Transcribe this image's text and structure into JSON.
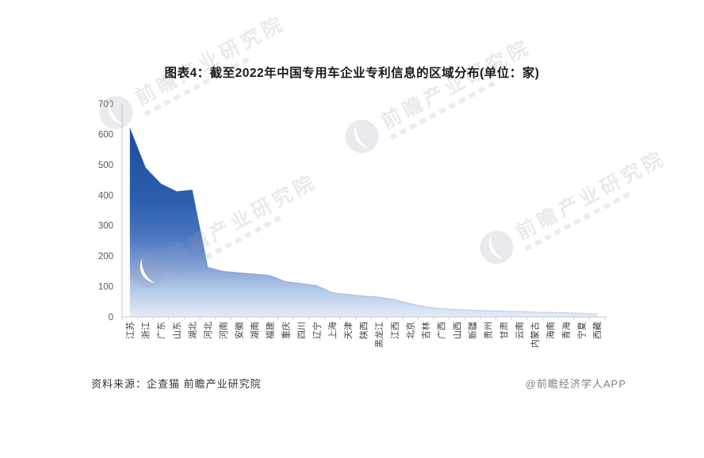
{
  "header": {
    "title": "图表4：截至2022年中国专用车企业专利信息的区域分布(单位：家)"
  },
  "footer": {
    "source": "资料来源：企查猫 前瞻产业研究院",
    "credit": "@前瞻经济学人APP"
  },
  "watermark": {
    "text": "前瞻产业研究院",
    "logo_icon": "forward-crescent-logo",
    "color": "rgba(148,158,175,0.22)"
  },
  "chart_data": {
    "type": "area",
    "title": "图表4：截至2022年中国专用车企业专利信息的区域分布(单位：家)",
    "unit": "家",
    "categories": [
      "江苏",
      "浙江",
      "广东",
      "山东",
      "湖北",
      "河北",
      "河南",
      "安徽",
      "湖南",
      "福建",
      "重庆",
      "四川",
      "辽宁",
      "上海",
      "天津",
      "陕西",
      "黑龙江",
      "江西",
      "北京",
      "吉林",
      "广西",
      "山西",
      "新疆",
      "贵州",
      "甘肃",
      "云南",
      "内蒙古",
      "海南",
      "青海",
      "宁夏",
      "西藏"
    ],
    "values": [
      620,
      490,
      437,
      412,
      417,
      163,
      150,
      145,
      141,
      136,
      116,
      110,
      103,
      80,
      74,
      69,
      65,
      57,
      44,
      33,
      27,
      25,
      22,
      20,
      19,
      18,
      16,
      15,
      14,
      12,
      10
    ],
    "xlabel": "",
    "ylabel": "",
    "ylim": [
      0,
      700
    ],
    "yticks": [
      0,
      100,
      200,
      300,
      400,
      500,
      600,
      700
    ],
    "grid": false,
    "legend": false,
    "colors": {
      "area_gradient": [
        {
          "offset": "0%",
          "color": "#1a4c9c"
        },
        {
          "offset": "15%",
          "color": "#1d509f"
        },
        {
          "offset": "45%",
          "color": "#2b5ead"
        },
        {
          "offset": "62%",
          "color": "#4a75bf"
        },
        {
          "offset": "75%",
          "color": "#7d9cd3"
        },
        {
          "offset": "87%",
          "color": "#b3c8e8"
        },
        {
          "offset": "100%",
          "color": "#e3ecf9"
        }
      ],
      "edge_gradient": [
        {
          "offset": "0%",
          "color": "#17468f"
        },
        {
          "offset": "45%",
          "color": "#24549f"
        },
        {
          "offset": "75%",
          "color": "#5b7fbe"
        },
        {
          "offset": "100%",
          "color": "#9db6de"
        }
      ],
      "axis": "#c9c9c9",
      "y_tick_label": "#595959",
      "x_tick_label": "#404040"
    }
  }
}
